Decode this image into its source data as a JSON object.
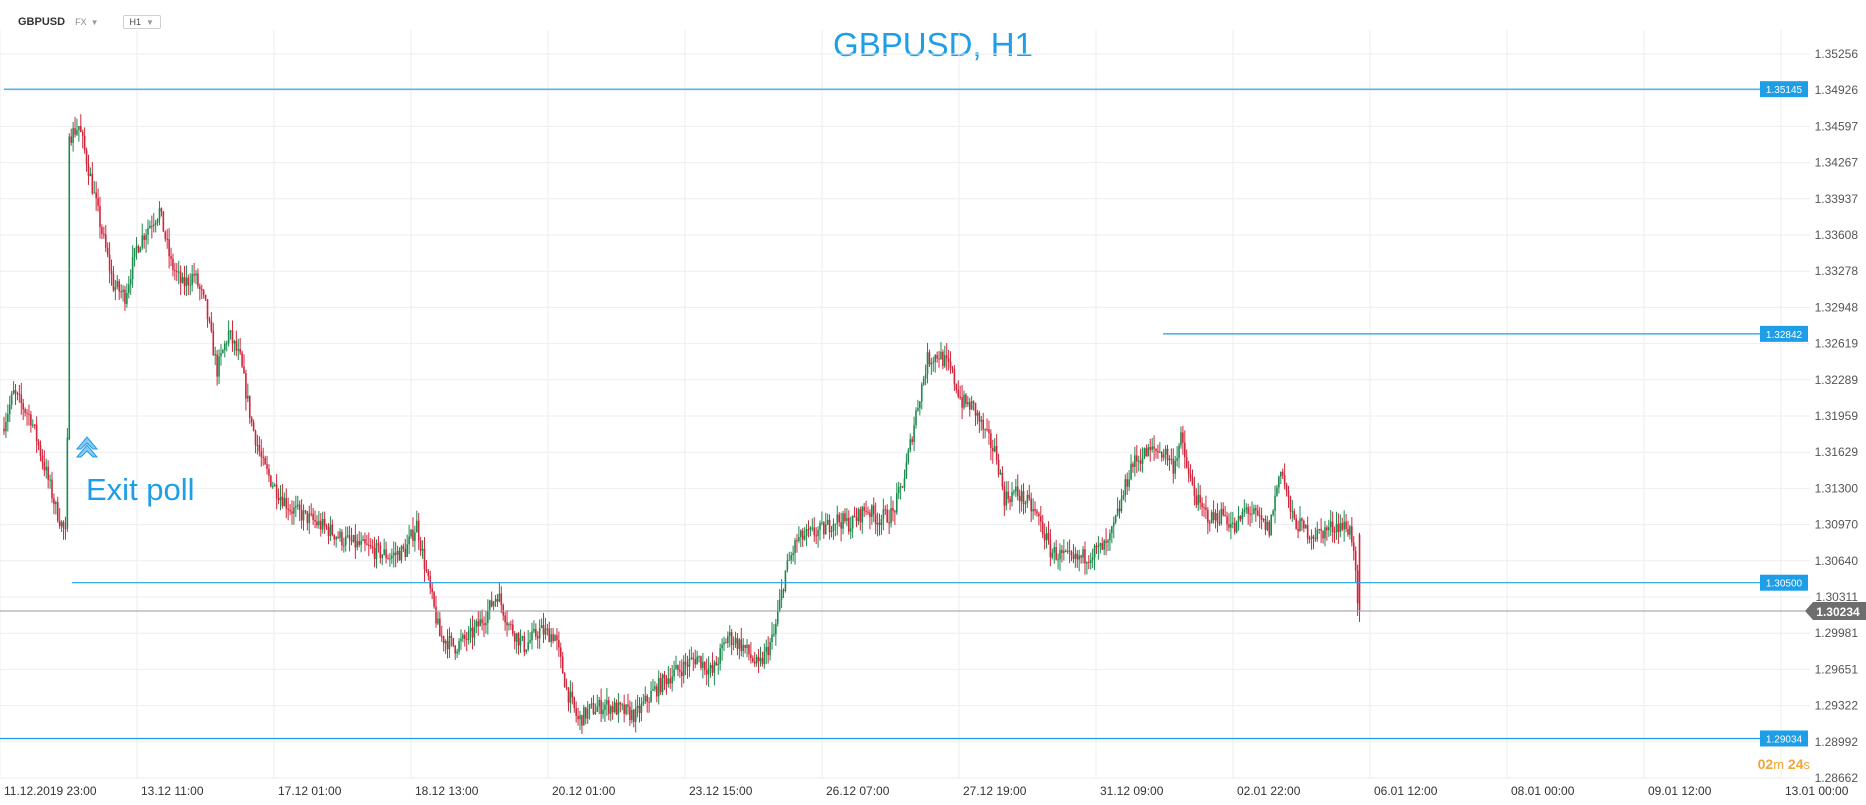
{
  "toolbar": {
    "symbol": "GBPUSD",
    "market": "FX",
    "timeframe": "H1"
  },
  "annotation": {
    "text": "Exit poll"
  },
  "timer": {
    "min": "02",
    "min_unit": "m",
    "sec": "24",
    "sec_unit": "s"
  },
  "chart_data": {
    "type": "candlestick",
    "title": "GBPUSD, H1",
    "ylim": [
      1.28662,
      1.35476
    ],
    "y_ticks": [
      "1.35256",
      "1.34926",
      "1.34597",
      "1.34267",
      "1.33937",
      "1.33608",
      "1.33278",
      "1.32948",
      "1.32619",
      "1.32289",
      "1.31959",
      "1.31629",
      "1.31300",
      "1.30970",
      "1.30640",
      "1.30311",
      "1.29981",
      "1.29651",
      "1.29322",
      "1.28992",
      "1.28662"
    ],
    "x_ticks": [
      "11.12.2019  23:00",
      "13.12  11:00",
      "17.12  01:00",
      "18.12  13:00",
      "20.12  01:00",
      "23.12  15:00",
      "26.12  07:00",
      "27.12  19:00",
      "31.12  09:00",
      "02.01  22:00",
      "06.01  12:00",
      "08.01  00:00",
      "09.01  12:00",
      "13.01  00:00"
    ],
    "current_price": {
      "label": "1.30234",
      "value": 1.30234
    },
    "levels": [
      {
        "label": "1.35145",
        "value": 1.35145
      },
      {
        "label": "1.32842",
        "value": 1.32842
      },
      {
        "label": "1.30500",
        "value": 1.305
      },
      {
        "label": "1.29034",
        "value": 1.29034
      }
    ],
    "path_points": [
      [
        0,
        1.3195
      ],
      [
        6,
        1.3228
      ],
      [
        15,
        1.3205
      ],
      [
        22,
        1.316
      ],
      [
        28,
        1.312
      ],
      [
        33,
        1.3095
      ],
      [
        34,
        1.318
      ],
      [
        35,
        1.347
      ],
      [
        40,
        1.348
      ],
      [
        45,
        1.344
      ],
      [
        52,
        1.338
      ],
      [
        58,
        1.333
      ],
      [
        64,
        1.332
      ],
      [
        70,
        1.3365
      ],
      [
        76,
        1.3385
      ],
      [
        82,
        1.34
      ],
      [
        88,
        1.335
      ],
      [
        94,
        1.333
      ],
      [
        100,
        1.334
      ],
      [
        106,
        1.331
      ],
      [
        112,
        1.325
      ],
      [
        118,
        1.3285
      ],
      [
        124,
        1.326
      ],
      [
        130,
        1.32
      ],
      [
        136,
        1.316
      ],
      [
        142,
        1.314
      ],
      [
        150,
        1.312
      ],
      [
        160,
        1.311
      ],
      [
        170,
        1.31
      ],
      [
        178,
        1.309
      ],
      [
        186,
        1.3085
      ],
      [
        194,
        1.308
      ],
      [
        202,
        1.3075
      ],
      [
        210,
        1.308
      ],
      [
        216,
        1.3105
      ],
      [
        222,
        1.305
      ],
      [
        228,
        1.3
      ],
      [
        236,
        1.299
      ],
      [
        244,
        1.3
      ],
      [
        252,
        1.302
      ],
      [
        258,
        1.304
      ],
      [
        264,
        1.301
      ],
      [
        272,
        1.299
      ],
      [
        280,
        1.3005
      ],
      [
        288,
        1.3
      ],
      [
        294,
        1.295
      ],
      [
        300,
        1.292
      ],
      [
        306,
        1.293
      ],
      [
        314,
        1.2935
      ],
      [
        322,
        1.293
      ],
      [
        330,
        1.2925
      ],
      [
        338,
        1.2945
      ],
      [
        346,
        1.296
      ],
      [
        354,
        1.297
      ],
      [
        362,
        1.298
      ],
      [
        370,
        1.2965
      ],
      [
        378,
        1.3
      ],
      [
        386,
        1.299
      ],
      [
        394,
        1.297
      ],
      [
        402,
        1.3
      ],
      [
        408,
        1.306
      ],
      [
        414,
        1.309
      ],
      [
        420,
        1.3095
      ],
      [
        428,
        1.31
      ],
      [
        434,
        1.311
      ],
      [
        442,
        1.3105
      ],
      [
        450,
        1.312
      ],
      [
        456,
        1.311
      ],
      [
        464,
        1.3115
      ],
      [
        470,
        1.315
      ],
      [
        476,
        1.321
      ],
      [
        482,
        1.326
      ],
      [
        488,
        1.3265
      ],
      [
        494,
        1.325
      ],
      [
        500,
        1.322
      ],
      [
        506,
        1.3215
      ],
      [
        512,
        1.319
      ],
      [
        518,
        1.317
      ],
      [
        522,
        1.313
      ],
      [
        528,
        1.3135
      ],
      [
        534,
        1.3125
      ],
      [
        540,
        1.311
      ],
      [
        546,
        1.308
      ],
      [
        552,
        1.3075
      ],
      [
        558,
        1.307
      ],
      [
        564,
        1.3075
      ],
      [
        570,
        1.308
      ],
      [
        576,
        1.3085
      ],
      [
        582,
        1.312
      ],
      [
        588,
        1.316
      ],
      [
        594,
        1.317
      ],
      [
        600,
        1.3175
      ],
      [
        606,
        1.3172
      ],
      [
        610,
        1.316
      ],
      [
        614,
        1.3185
      ],
      [
        618,
        1.315
      ],
      [
        624,
        1.312
      ],
      [
        630,
        1.311
      ],
      [
        636,
        1.3115
      ],
      [
        642,
        1.31
      ],
      [
        648,
        1.312
      ],
      [
        654,
        1.311
      ],
      [
        660,
        1.31
      ],
      [
        666,
        1.316
      ],
      [
        672,
        1.311
      ],
      [
        678,
        1.31
      ],
      [
        684,
        1.3095
      ],
      [
        690,
        1.31
      ],
      [
        696,
        1.3105
      ],
      [
        702,
        1.31
      ],
      [
        704,
        1.3085
      ],
      [
        706,
        1.3023
      ]
    ]
  }
}
